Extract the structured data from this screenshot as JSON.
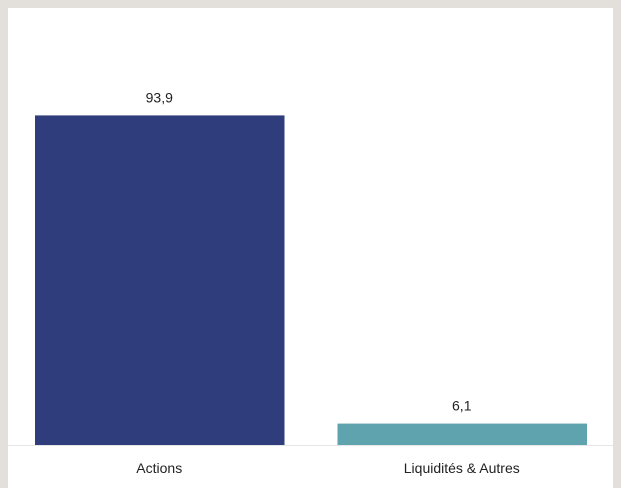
{
  "chart_data": {
    "type": "bar",
    "categories": [
      "Actions",
      "Liquidités & Autres"
    ],
    "values": [
      93.9,
      6.1
    ],
    "value_labels": [
      "93,9",
      "6,1"
    ],
    "colors": [
      "#2f3d7c",
      "#5ea3ad"
    ],
    "ylim": [
      0,
      100
    ],
    "grid": false,
    "legend": "none",
    "title": "",
    "xlabel": "",
    "ylabel": ""
  }
}
